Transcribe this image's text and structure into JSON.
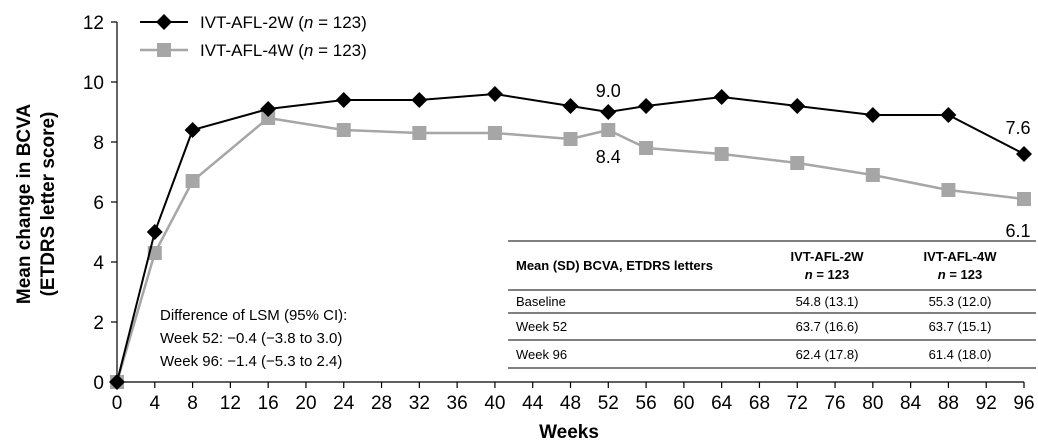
{
  "chart_data": {
    "type": "line",
    "ylabel_line1": "Mean change in BCVA",
    "ylabel_line2": "(ETDRS letter score)",
    "xlabel": "Weeks",
    "ylim": [
      0,
      12
    ],
    "xlim": [
      0,
      96
    ],
    "yticks": [
      0,
      2,
      4,
      6,
      8,
      10,
      12
    ],
    "xticks": [
      0,
      4,
      8,
      12,
      16,
      20,
      24,
      28,
      32,
      36,
      40,
      44,
      48,
      52,
      56,
      60,
      64,
      68,
      72,
      76,
      80,
      84,
      88,
      92,
      96
    ],
    "grid": false,
    "legend_position": "top-left",
    "series": [
      {
        "name": "IVT-AFL-2W",
        "n_label": "= 123",
        "color": "#000000",
        "marker": "diamond",
        "x": [
          0,
          4,
          8,
          16,
          24,
          32,
          40,
          48,
          52,
          56,
          64,
          72,
          80,
          88,
          96
        ],
        "values": [
          0,
          5.0,
          8.4,
          9.1,
          9.4,
          9.4,
          9.6,
          9.2,
          9.0,
          9.2,
          9.5,
          9.2,
          8.9,
          8.9,
          7.6
        ]
      },
      {
        "name": "IVT-AFL-4W",
        "n_label": "= 123",
        "color": "#a6a6a6",
        "marker": "square",
        "x": [
          0,
          4,
          8,
          16,
          24,
          32,
          40,
          48,
          52,
          56,
          64,
          72,
          80,
          88,
          96
        ],
        "values": [
          0,
          4.3,
          6.7,
          8.8,
          8.4,
          8.3,
          8.3,
          8.1,
          8.4,
          7.8,
          7.6,
          7.3,
          6.9,
          6.4,
          6.1
        ]
      }
    ],
    "annotations": [
      {
        "text": "9.0",
        "x": 52,
        "y": 9.0
      },
      {
        "text": "8.4",
        "x": 52,
        "y": 8.4
      },
      {
        "text": "7.6",
        "x": 96,
        "y": 7.6
      },
      {
        "text": "6.1",
        "x": 96,
        "y": 6.1
      }
    ],
    "lsm_note": {
      "title": "Difference of LSM (95% CI):",
      "line1": "Week 52: −0.4 (−3.8 to 3.0)",
      "line2": "Week 96: −1.4 (−5.3 to 2.4)"
    },
    "table": {
      "header_label": "Mean (SD) BCVA, ETDRS letters",
      "col1_name": "IVT-AFL-2W",
      "col2_name": "IVT-AFL-4W",
      "n_text": "= 123",
      "rows": [
        {
          "label": "Baseline",
          "v1": "54.8 (13.1)",
          "v2": "55.3 (12.0)"
        },
        {
          "label": "Week 52",
          "v1": "63.7 (16.6)",
          "v2": "63.7 (15.1)"
        },
        {
          "label": "Week 96",
          "v1": "62.4 (17.8)",
          "v2": "61.4 (18.0)"
        }
      ]
    }
  }
}
